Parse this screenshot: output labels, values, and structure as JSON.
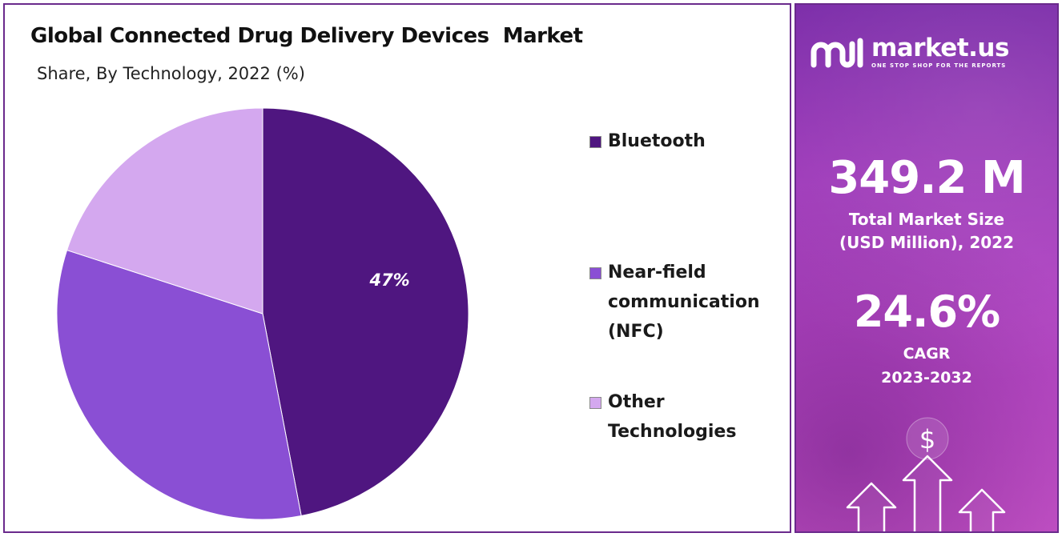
{
  "chart_data": {
    "type": "pie",
    "title": "Global Connected Drug Delivery Devices  Market",
    "subtitle": "Share, By Technology, 2022 (%)",
    "slices": [
      {
        "name": "Bluetooth",
        "value": 47,
        "label": "47%",
        "color": "#4f1680"
      },
      {
        "name": "Near-field communication (NFC)",
        "value": 33,
        "label": "",
        "color": "#8a4fd4"
      },
      {
        "name": "Other Technologies",
        "value": 20,
        "label": "",
        "color": "#d4a8ef"
      }
    ],
    "legend_position": "right",
    "start_angle_deg": 0,
    "direction": "clockwise"
  },
  "legend": {
    "items": [
      {
        "lines": [
          "Bluetooth"
        ],
        "color": "#4f1680"
      },
      {
        "lines": [
          "Near-field",
          "communication",
          "(NFC)"
        ],
        "color": "#8a4fd4"
      },
      {
        "lines": [
          "Other",
          "Technologies"
        ],
        "color": "#d4a8ef"
      }
    ]
  },
  "side_panel": {
    "brand": "market.us",
    "tagline": "ONE STOP SHOP FOR THE REPORTS",
    "market_size": "349.2 M",
    "market_size_label_1": "Total Market Size",
    "market_size_label_2": "(USD Million), 2022",
    "cagr": "24.6%",
    "cagr_label": "CAGR",
    "cagr_period": "2023-2032",
    "dollar_sign": "$",
    "background_color": "#9b38b8"
  }
}
